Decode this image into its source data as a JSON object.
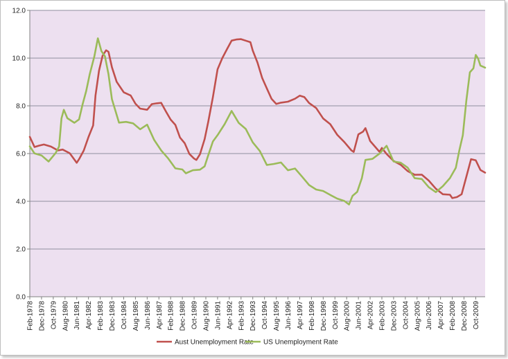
{
  "chart_data": {
    "type": "line",
    "title": "",
    "xlabel": "",
    "ylabel": "",
    "ylim": [
      0,
      12
    ],
    "y_ticks": [
      "0.0",
      "2.0",
      "4.0",
      "6.0",
      "8.0",
      "10.0",
      "12.0"
    ],
    "x_range": [
      "Feb-1978",
      "Dec-2009"
    ],
    "x_tick_labels": [
      "Feb-1978",
      "Dec-1978",
      "Oct-1979",
      "Aug-1980",
      "Jun-1981",
      "Apr-1982",
      "Feb-1983",
      "Dec-1983",
      "Oct-1984",
      "Aug-1985",
      "Jun-1986",
      "Apr-1987",
      "Feb-1988",
      "Dec-1988",
      "Oct-1989",
      "Aug-1990",
      "Jun-1991",
      "Apr-1992",
      "Feb-1993",
      "Dec-1993",
      "Oct-1994",
      "Aug-1995",
      "Jun-1996",
      "Apr-1997",
      "Feb-1998",
      "Dec-1998",
      "Oct-1999",
      "Aug-2000",
      "Jun-2001",
      "Apr-2002",
      "Feb-2003",
      "Dec-2003",
      "Oct-2004",
      "Aug-2005",
      "Jun-2006",
      "Apr-2007",
      "Feb-2008",
      "Dec-2008",
      "Oct-2009"
    ],
    "plot_background": "#ede0f0",
    "grid": "horizontal",
    "legend": "bottom",
    "series": [
      {
        "name": "Aust Unemployment Rate",
        "color": "#c0504d",
        "points": [
          [
            "Feb-1978",
            6.7
          ],
          [
            "Jun-1978",
            6.3
          ],
          [
            "Oct-1978",
            6.3
          ],
          [
            "Feb-1979",
            6.4
          ],
          [
            "Aug-1979",
            6.3
          ],
          [
            "Feb-1980",
            6.1
          ],
          [
            "Jun-1980",
            6.2
          ],
          [
            "Dec-1980",
            6.0
          ],
          [
            "Jun-1981",
            5.6
          ],
          [
            "Aug-1981",
            5.8
          ],
          [
            "Dec-1981",
            6.1
          ],
          [
            "Apr-1982",
            6.7
          ],
          [
            "Aug-1982",
            7.2
          ],
          [
            "Oct-1982",
            8.4
          ],
          [
            "Jan-1983",
            9.5
          ],
          [
            "Apr-1983",
            10.1
          ],
          [
            "Jul-1983",
            10.3
          ],
          [
            "Sep-1983",
            10.3
          ],
          [
            "Dec-1983",
            9.6
          ],
          [
            "Apr-1984",
            9.0
          ],
          [
            "Oct-1984",
            8.6
          ],
          [
            "Apr-1985",
            8.4
          ],
          [
            "Aug-1985",
            8.1
          ],
          [
            "Dec-1985",
            7.9
          ],
          [
            "Jun-1986",
            7.8
          ],
          [
            "Oct-1986",
            8.1
          ],
          [
            "Feb-1987",
            8.1
          ],
          [
            "Jun-1987",
            8.1
          ],
          [
            "Oct-1987",
            7.8
          ],
          [
            "Feb-1988",
            7.4
          ],
          [
            "Jun-1988",
            7.2
          ],
          [
            "Oct-1988",
            6.7
          ],
          [
            "Feb-1989",
            6.4
          ],
          [
            "Jun-1989",
            6.0
          ],
          [
            "Oct-1989",
            5.8
          ],
          [
            "Dec-1989",
            5.7
          ],
          [
            "Mar-1990",
            6.0
          ],
          [
            "Jul-1990",
            6.6
          ],
          [
            "Oct-1990",
            7.3
          ],
          [
            "Feb-1991",
            8.4
          ],
          [
            "Jun-1991",
            9.5
          ],
          [
            "Oct-1991",
            10.0
          ],
          [
            "Feb-1992",
            10.4
          ],
          [
            "Jun-1992",
            10.7
          ],
          [
            "Oct-1992",
            10.8
          ],
          [
            "Feb-1993",
            10.8
          ],
          [
            "Jun-1993",
            10.7
          ],
          [
            "Oct-1993",
            10.7
          ],
          [
            "Dec-1993",
            10.3
          ],
          [
            "Apr-1994",
            9.8
          ],
          [
            "Aug-1994",
            9.2
          ],
          [
            "Dec-1994",
            8.7
          ],
          [
            "Apr-1995",
            8.3
          ],
          [
            "Aug-1995",
            8.1
          ],
          [
            "Dec-1995",
            8.1
          ],
          [
            "Jun-1996",
            8.2
          ],
          [
            "Dec-1996",
            8.3
          ],
          [
            "Apr-1997",
            8.4
          ],
          [
            "Aug-1997",
            8.4
          ],
          [
            "Dec-1997",
            8.1
          ],
          [
            "Jun-1998",
            7.9
          ],
          [
            "Dec-1998",
            7.5
          ],
          [
            "Jun-1999",
            7.2
          ],
          [
            "Dec-1999",
            6.8
          ],
          [
            "Jun-2000",
            6.5
          ],
          [
            "Dec-2000",
            6.1
          ],
          [
            "Feb-2001",
            6.1
          ],
          [
            "Jun-2001",
            6.8
          ],
          [
            "Oct-2001",
            6.9
          ],
          [
            "Dec-2001",
            7.1
          ],
          [
            "Apr-2002",
            6.5
          ],
          [
            "Aug-2002",
            6.3
          ],
          [
            "Dec-2002",
            6.1
          ],
          [
            "Feb-2003",
            6.2
          ],
          [
            "Jun-2003",
            6.0
          ],
          [
            "Dec-2003",
            5.7
          ],
          [
            "Jun-2004",
            5.5
          ],
          [
            "Dec-2004",
            5.3
          ],
          [
            "Jun-2005",
            5.1
          ],
          [
            "Dec-2005",
            5.1
          ],
          [
            "Jun-2006",
            4.9
          ],
          [
            "Dec-2006",
            4.5
          ],
          [
            "Jun-2007",
            4.3
          ],
          [
            "Dec-2007",
            4.3
          ],
          [
            "Feb-2008",
            4.1
          ],
          [
            "Jun-2008",
            4.2
          ],
          [
            "Oct-2008",
            4.3
          ],
          [
            "Feb-2009",
            5.0
          ],
          [
            "Jun-2009",
            5.8
          ],
          [
            "Oct-2009",
            5.7
          ],
          [
            "Feb-2010",
            5.3
          ],
          [
            "Jun-2010",
            5.2
          ]
        ]
      },
      {
        "name": "US Unemployment Rate",
        "color": "#9bbb59",
        "points": [
          [
            "Feb-1978",
            6.3
          ],
          [
            "Jun-1978",
            6.0
          ],
          [
            "Dec-1978",
            5.9
          ],
          [
            "Jun-1979",
            5.7
          ],
          [
            "Dec-1979",
            6.0
          ],
          [
            "Mar-1980",
            6.3
          ],
          [
            "May-1980",
            7.5
          ],
          [
            "Jul-1980",
            7.8
          ],
          [
            "Oct-1980",
            7.5
          ],
          [
            "Apr-1981",
            7.3
          ],
          [
            "Aug-1981",
            7.4
          ],
          [
            "Nov-1981",
            8.1
          ],
          [
            "Feb-1982",
            8.6
          ],
          [
            "May-1982",
            9.3
          ],
          [
            "Sep-1982",
            10.1
          ],
          [
            "Dec-1982",
            10.8
          ],
          [
            "Mar-1983",
            10.3
          ],
          [
            "Jun-1983",
            10.1
          ],
          [
            "Sep-1983",
            9.3
          ],
          [
            "Dec-1983",
            8.3
          ],
          [
            "Jun-1984",
            7.3
          ],
          [
            "Dec-1984",
            7.3
          ],
          [
            "Jun-1985",
            7.3
          ],
          [
            "Dec-1985",
            7.0
          ],
          [
            "Jun-1986",
            7.2
          ],
          [
            "Dec-1986",
            6.6
          ],
          [
            "Jun-1987",
            6.1
          ],
          [
            "Dec-1987",
            5.8
          ],
          [
            "Jun-1988",
            5.4
          ],
          [
            "Dec-1988",
            5.3
          ],
          [
            "Mar-1989",
            5.2
          ],
          [
            "Sep-1989",
            5.3
          ],
          [
            "Mar-1990",
            5.3
          ],
          [
            "Jul-1990",
            5.5
          ],
          [
            "Oct-1990",
            5.9
          ],
          [
            "Feb-1991",
            6.5
          ],
          [
            "Jun-1991",
            6.8
          ],
          [
            "Dec-1991",
            7.2
          ],
          [
            "Jun-1992",
            7.8
          ],
          [
            "Dec-1992",
            7.3
          ],
          [
            "Jun-1993",
            7.0
          ],
          [
            "Dec-1993",
            6.5
          ],
          [
            "Jun-1994",
            6.1
          ],
          [
            "Dec-1994",
            5.5
          ],
          [
            "Jun-1995",
            5.6
          ],
          [
            "Dec-1995",
            5.6
          ],
          [
            "Jun-1996",
            5.3
          ],
          [
            "Dec-1996",
            5.4
          ],
          [
            "Jun-1997",
            5.0
          ],
          [
            "Dec-1997",
            4.7
          ],
          [
            "Jun-1998",
            4.5
          ],
          [
            "Dec-1998",
            4.4
          ],
          [
            "Jun-1999",
            4.3
          ],
          [
            "Dec-1999",
            4.1
          ],
          [
            "Jun-2000",
            4.0
          ],
          [
            "Oct-2000",
            3.9
          ],
          [
            "Jan-2001",
            4.2
          ],
          [
            "May-2001",
            4.4
          ],
          [
            "Sep-2001",
            5.0
          ],
          [
            "Dec-2001",
            5.7
          ],
          [
            "Jun-2002",
            5.8
          ],
          [
            "Dec-2002",
            6.0
          ],
          [
            "Jun-2003",
            6.3
          ],
          [
            "Dec-2003",
            5.7
          ],
          [
            "Jun-2004",
            5.6
          ],
          [
            "Dec-2004",
            5.4
          ],
          [
            "Jun-2005",
            5.0
          ],
          [
            "Dec-2005",
            4.9
          ],
          [
            "Jun-2006",
            4.6
          ],
          [
            "Dec-2006",
            4.4
          ],
          [
            "Jun-2007",
            4.6
          ],
          [
            "Dec-2007",
            5.0
          ],
          [
            "May-2008",
            5.4
          ],
          [
            "Aug-2008",
            6.1
          ],
          [
            "Nov-2008",
            6.8
          ],
          [
            "Feb-2009",
            8.2
          ],
          [
            "May-2009",
            9.4
          ],
          [
            "Aug-2009",
            9.6
          ],
          [
            "Oct-2009",
            10.1
          ],
          [
            "Dec-2009",
            10.0
          ],
          [
            "Feb-2010",
            9.7
          ],
          [
            "Jun-2010",
            9.6
          ]
        ]
      }
    ]
  }
}
